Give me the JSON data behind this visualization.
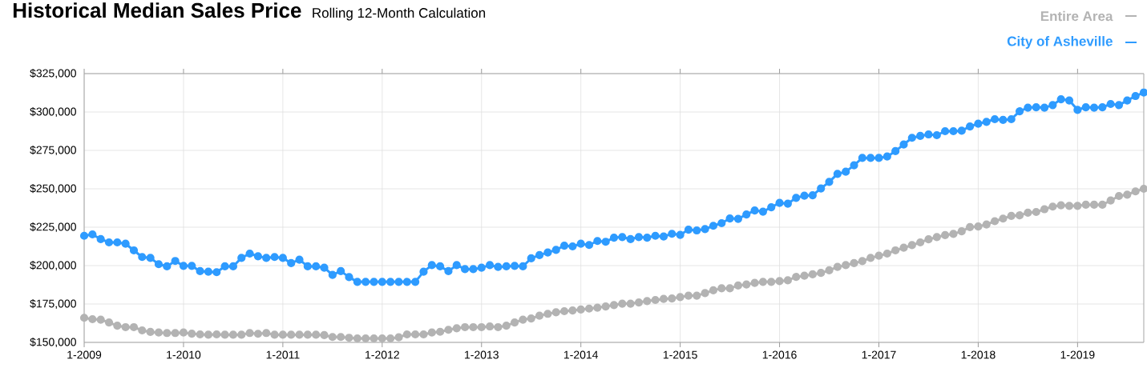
{
  "chart_data": {
    "type": "line",
    "title": "Historical Median Sales Price",
    "subtitle": "Rolling 12-Month Calculation",
    "x": [
      "2009-01",
      "2009-02",
      "2009-03",
      "2009-04",
      "2009-05",
      "2009-06",
      "2009-07",
      "2009-08",
      "2009-09",
      "2009-10",
      "2009-11",
      "2009-12",
      "2010-01",
      "2010-02",
      "2010-03",
      "2010-04",
      "2010-05",
      "2010-06",
      "2010-07",
      "2010-08",
      "2010-09",
      "2010-10",
      "2010-11",
      "2010-12",
      "2011-01",
      "2011-02",
      "2011-03",
      "2011-04",
      "2011-05",
      "2011-06",
      "2011-07",
      "2011-08",
      "2011-09",
      "2011-10",
      "2011-11",
      "2011-12",
      "2012-01",
      "2012-02",
      "2012-03",
      "2012-04",
      "2012-05",
      "2012-06",
      "2012-07",
      "2012-08",
      "2012-09",
      "2012-10",
      "2012-11",
      "2012-12",
      "2013-01",
      "2013-02",
      "2013-03",
      "2013-04",
      "2013-05",
      "2013-06",
      "2013-07",
      "2013-08",
      "2013-09",
      "2013-10",
      "2013-11",
      "2013-12",
      "2014-01",
      "2014-02",
      "2014-03",
      "2014-04",
      "2014-05",
      "2014-06",
      "2014-07",
      "2014-08",
      "2014-09",
      "2014-10",
      "2014-11",
      "2014-12",
      "2015-01",
      "2015-02",
      "2015-03",
      "2015-04",
      "2015-05",
      "2015-06",
      "2015-07",
      "2015-08",
      "2015-09",
      "2015-10",
      "2015-11",
      "2015-12",
      "2016-01",
      "2016-02",
      "2016-03",
      "2016-04",
      "2016-05",
      "2016-06",
      "2016-07",
      "2016-08",
      "2016-09",
      "2016-10",
      "2016-11",
      "2016-12",
      "2017-01",
      "2017-02",
      "2017-03",
      "2017-04",
      "2017-05",
      "2017-06",
      "2017-07",
      "2017-08",
      "2017-09",
      "2017-10",
      "2017-11",
      "2017-12",
      "2018-01",
      "2018-02",
      "2018-03",
      "2018-04",
      "2018-05",
      "2018-06",
      "2018-07",
      "2018-08",
      "2018-09",
      "2018-10",
      "2018-11",
      "2018-12",
      "2019-01",
      "2019-02",
      "2019-03",
      "2019-04",
      "2019-05",
      "2019-06",
      "2019-07",
      "2019-08",
      "2019-09"
    ],
    "series": [
      {
        "name": "Entire Area",
        "color": "#b3b3b3",
        "values": [
          166000,
          165100,
          164800,
          163000,
          160900,
          159900,
          159900,
          157800,
          156800,
          156400,
          156100,
          156100,
          156400,
          155700,
          155200,
          155000,
          155200,
          155000,
          155000,
          155000,
          156100,
          155600,
          156100,
          155000,
          155000,
          155000,
          155000,
          155000,
          155000,
          154700,
          153500,
          153500,
          153000,
          152600,
          152600,
          152600,
          152600,
          152600,
          153300,
          155200,
          155200,
          155200,
          156400,
          156900,
          158200,
          159200,
          159900,
          159900,
          159900,
          160400,
          159900,
          160900,
          163000,
          164800,
          165600,
          167400,
          168600,
          169600,
          170300,
          170800,
          171400,
          172000,
          172600,
          173400,
          174300,
          175200,
          175200,
          176000,
          176900,
          177600,
          178300,
          178600,
          179500,
          180400,
          180400,
          182100,
          183900,
          185200,
          185200,
          187000,
          187700,
          188700,
          189400,
          189400,
          189900,
          190400,
          192600,
          193400,
          194300,
          195200,
          196900,
          199100,
          200300,
          201600,
          202900,
          205000,
          206400,
          207800,
          209900,
          211600,
          213300,
          215100,
          217100,
          218500,
          219900,
          220600,
          222300,
          225100,
          225400,
          226800,
          228900,
          230600,
          232400,
          232700,
          234400,
          234900,
          236700,
          238400,
          239300,
          238900,
          238900,
          239600,
          239600,
          239600,
          242400,
          245300,
          246200,
          248300,
          250000
        ]
      },
      {
        "name": "City of Asheville",
        "color": "#2e9bff",
        "values": [
          219400,
          220300,
          217200,
          215100,
          215100,
          214200,
          209900,
          205600,
          205000,
          200900,
          199500,
          203000,
          199800,
          199800,
          196400,
          196000,
          195700,
          199500,
          199500,
          205000,
          207800,
          206100,
          205000,
          205600,
          205000,
          201600,
          203800,
          199500,
          199500,
          198600,
          193900,
          196400,
          192500,
          189400,
          189400,
          189400,
          189400,
          189400,
          189400,
          189400,
          189400,
          196000,
          200300,
          199500,
          196400,
          200300,
          197700,
          197700,
          198600,
          200300,
          199100,
          199500,
          199800,
          199500,
          204700,
          206800,
          208500,
          210200,
          213000,
          212500,
          214200,
          213400,
          216000,
          215500,
          218200,
          218600,
          217200,
          218600,
          218200,
          219400,
          218900,
          220700,
          220000,
          223400,
          222900,
          223800,
          225900,
          227600,
          230700,
          230400,
          233300,
          235900,
          235100,
          238000,
          240800,
          240300,
          244100,
          245500,
          245800,
          250200,
          254500,
          259700,
          261100,
          265300,
          270100,
          270100,
          270100,
          271000,
          274500,
          278800,
          283200,
          284400,
          285400,
          284900,
          287500,
          287500,
          287800,
          290600,
          292400,
          293600,
          295300,
          294800,
          295300,
          300500,
          302800,
          303100,
          302800,
          304500,
          308300,
          307500,
          301400,
          303100,
          302800,
          303100,
          305200,
          304500,
          307500,
          310400,
          312700
        ]
      }
    ],
    "xlim": [
      "2009-01",
      "2019-09"
    ],
    "xticks": [
      {
        "value": "2009-01",
        "label": "1-2009"
      },
      {
        "value": "2010-01",
        "label": "1-2010"
      },
      {
        "value": "2011-01",
        "label": "1-2011"
      },
      {
        "value": "2012-01",
        "label": "1-2012"
      },
      {
        "value": "2013-01",
        "label": "1-2013"
      },
      {
        "value": "2014-01",
        "label": "1-2014"
      },
      {
        "value": "2015-01",
        "label": "1-2015"
      },
      {
        "value": "2016-01",
        "label": "1-2016"
      },
      {
        "value": "2017-01",
        "label": "1-2017"
      },
      {
        "value": "2018-01",
        "label": "1-2018"
      },
      {
        "value": "2019-01",
        "label": "1-2019"
      }
    ],
    "ylim": [
      150000,
      325000
    ],
    "yticks": [
      {
        "value": 150000,
        "label": "$150,000"
      },
      {
        "value": 175000,
        "label": "$175,000"
      },
      {
        "value": 200000,
        "label": "$200,000"
      },
      {
        "value": 225000,
        "label": "$225,000"
      },
      {
        "value": 250000,
        "label": "$250,000"
      },
      {
        "value": 275000,
        "label": "$275,000"
      },
      {
        "value": 300000,
        "label": "$300,000"
      },
      {
        "value": 325000,
        "label": "$325,000"
      }
    ],
    "grid": true,
    "legend": "top right",
    "marker": "circle",
    "line_style": "solid"
  }
}
